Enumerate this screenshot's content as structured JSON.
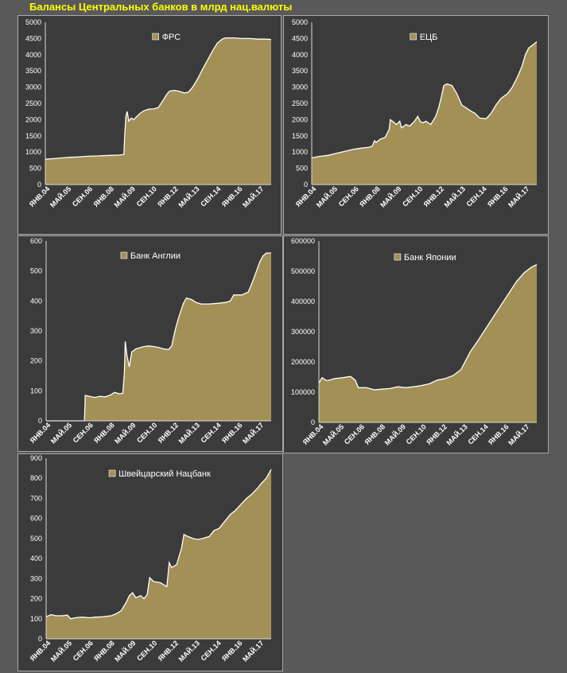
{
  "title": "Балансы Центральных банков в млрд нац.валюты",
  "colors": {
    "fill": "#a39057",
    "line": "#ffffff",
    "background": "#595959",
    "panel": "#3b3b3b"
  },
  "chart_data": [
    {
      "type": "area",
      "legend": "ФРС",
      "legend_position": "top-center",
      "ylim": [
        0,
        5000
      ],
      "yticks": [
        "0",
        "500",
        "1000",
        "1500",
        "2000",
        "2500",
        "3000",
        "3500",
        "4000",
        "4500",
        "5000"
      ],
      "xlabels": [
        "ЯНВ.04",
        "МАЙ.05",
        "СЕН.06",
        "ЯНВ.08",
        "МАЙ.09",
        "СЕН.10",
        "ЯНВ.12",
        "МАЙ.13",
        "СЕН.14",
        "ЯНВ.16",
        "МАЙ.17"
      ],
      "xlim": [
        2004.0,
        2017.8
      ],
      "points": [
        [
          2004.0,
          780
        ],
        [
          2004.5,
          800
        ],
        [
          2005.0,
          820
        ],
        [
          2005.5,
          840
        ],
        [
          2006.0,
          850
        ],
        [
          2006.5,
          870
        ],
        [
          2007.0,
          880
        ],
        [
          2007.5,
          890
        ],
        [
          2008.0,
          900
        ],
        [
          2008.5,
          910
        ],
        [
          2008.8,
          930
        ],
        [
          2008.85,
          1500
        ],
        [
          2008.92,
          2100
        ],
        [
          2009.0,
          2250
        ],
        [
          2009.1,
          1950
        ],
        [
          2009.25,
          2050
        ],
        [
          2009.4,
          2000
        ],
        [
          2009.6,
          2100
        ],
        [
          2009.8,
          2200
        ],
        [
          2010.0,
          2270
        ],
        [
          2010.3,
          2320
        ],
        [
          2010.6,
          2330
        ],
        [
          2010.9,
          2370
        ],
        [
          2011.2,
          2600
        ],
        [
          2011.45,
          2800
        ],
        [
          2011.6,
          2880
        ],
        [
          2011.9,
          2900
        ],
        [
          2012.2,
          2870
        ],
        [
          2012.5,
          2820
        ],
        [
          2012.75,
          2850
        ],
        [
          2013.0,
          3000
        ],
        [
          2013.3,
          3250
        ],
        [
          2013.6,
          3550
        ],
        [
          2013.9,
          3820
        ],
        [
          2014.2,
          4100
        ],
        [
          2014.5,
          4350
        ],
        [
          2014.8,
          4480
        ],
        [
          2015.0,
          4520
        ],
        [
          2015.5,
          4520
        ],
        [
          2016.0,
          4500
        ],
        [
          2016.5,
          4500
        ],
        [
          2017.0,
          4480
        ],
        [
          2017.5,
          4480
        ],
        [
          2017.8,
          4470
        ]
      ]
    },
    {
      "type": "area",
      "legend": "ЕЦБ",
      "legend_position": "top-center",
      "ylim": [
        0,
        5000
      ],
      "yticks": [
        "0",
        "500",
        "1000",
        "1500",
        "2000",
        "2500",
        "3000",
        "3500",
        "4000",
        "4500",
        "5000"
      ],
      "xlabels": [
        "ЯНВ.04",
        "МАЙ.05",
        "СЕН.06",
        "ЯНВ.08",
        "МАЙ.09",
        "СЕН.10",
        "ЯНВ.12",
        "МАЙ.13",
        "СЕН.14",
        "ЯНВ.16",
        "МАЙ.17"
      ],
      "xlim": [
        2004.0,
        2017.8
      ],
      "points": [
        [
          2004.0,
          820
        ],
        [
          2004.5,
          870
        ],
        [
          2005.0,
          900
        ],
        [
          2005.5,
          960
        ],
        [
          2006.0,
          1020
        ],
        [
          2006.5,
          1080
        ],
        [
          2007.0,
          1120
        ],
        [
          2007.5,
          1150
        ],
        [
          2007.7,
          1180
        ],
        [
          2007.85,
          1350
        ],
        [
          2007.95,
          1300
        ],
        [
          2008.2,
          1400
        ],
        [
          2008.5,
          1450
        ],
        [
          2008.75,
          1700
        ],
        [
          2008.82,
          2000
        ],
        [
          2008.95,
          1950
        ],
        [
          2009.2,
          1850
        ],
        [
          2009.4,
          1950
        ],
        [
          2009.5,
          1750
        ],
        [
          2009.8,
          1850
        ],
        [
          2010.0,
          1800
        ],
        [
          2010.3,
          1950
        ],
        [
          2010.5,
          2100
        ],
        [
          2010.65,
          1950
        ],
        [
          2010.8,
          1900
        ],
        [
          2011.0,
          1950
        ],
        [
          2011.3,
          1850
        ],
        [
          2011.6,
          2100
        ],
        [
          2011.8,
          2400
        ],
        [
          2011.95,
          2700
        ],
        [
          2012.1,
          3050
        ],
        [
          2012.3,
          3100
        ],
        [
          2012.6,
          3050
        ],
        [
          2012.9,
          2800
        ],
        [
          2013.2,
          2450
        ],
        [
          2013.5,
          2350
        ],
        [
          2013.8,
          2250
        ],
        [
          2014.0,
          2200
        ],
        [
          2014.3,
          2050
        ],
        [
          2014.7,
          2030
        ],
        [
          2015.0,
          2200
        ],
        [
          2015.3,
          2450
        ],
        [
          2015.6,
          2650
        ],
        [
          2016.0,
          2800
        ],
        [
          2016.3,
          3000
        ],
        [
          2016.6,
          3300
        ],
        [
          2016.9,
          3650
        ],
        [
          2017.1,
          4000
        ],
        [
          2017.3,
          4200
        ],
        [
          2017.5,
          4280
        ],
        [
          2017.8,
          4400
        ]
      ]
    },
    {
      "type": "area",
      "legend": "Банк Англии",
      "legend_position": "top-center",
      "ylim": [
        0,
        600
      ],
      "yticks": [
        "0",
        "100",
        "200",
        "300",
        "400",
        "500",
        "600"
      ],
      "xlabels": [
        "ЯНВ.04",
        "МАЙ.05",
        "СЕН.06",
        "ЯНВ.08",
        "МАЙ.09",
        "СЕН.10",
        "ЯНВ.12",
        "МАЙ.13",
        "СЕН.14",
        "ЯНВ.16",
        "МАЙ.17"
      ],
      "xlim": [
        2004.0,
        2017.8
      ],
      "points": [
        [
          2004.0,
          0
        ],
        [
          2006.35,
          0
        ],
        [
          2006.4,
          85
        ],
        [
          2006.8,
          80
        ],
        [
          2007.0,
          78
        ],
        [
          2007.3,
          82
        ],
        [
          2007.6,
          80
        ],
        [
          2007.9,
          85
        ],
        [
          2008.2,
          95
        ],
        [
          2008.5,
          90
        ],
        [
          2008.7,
          92
        ],
        [
          2008.8,
          160
        ],
        [
          2008.85,
          265
        ],
        [
          2008.95,
          220
        ],
        [
          2009.1,
          180
        ],
        [
          2009.25,
          230
        ],
        [
          2009.5,
          240
        ],
        [
          2009.8,
          245
        ],
        [
          2010.0,
          248
        ],
        [
          2010.3,
          250
        ],
        [
          2010.6,
          248
        ],
        [
          2010.9,
          245
        ],
        [
          2011.2,
          240
        ],
        [
          2011.5,
          238
        ],
        [
          2011.7,
          250
        ],
        [
          2011.9,
          300
        ],
        [
          2012.1,
          340
        ],
        [
          2012.4,
          390
        ],
        [
          2012.6,
          410
        ],
        [
          2012.9,
          405
        ],
        [
          2013.2,
          395
        ],
        [
          2013.5,
          390
        ],
        [
          2014.0,
          390
        ],
        [
          2014.5,
          392
        ],
        [
          2015.0,
          395
        ],
        [
          2015.3,
          400
        ],
        [
          2015.5,
          420
        ],
        [
          2016.0,
          420
        ],
        [
          2016.4,
          430
        ],
        [
          2016.7,
          470
        ],
        [
          2016.9,
          500
        ],
        [
          2017.1,
          530
        ],
        [
          2017.3,
          550
        ],
        [
          2017.5,
          560
        ],
        [
          2017.8,
          560
        ]
      ]
    },
    {
      "type": "area",
      "legend": "Банк Японии",
      "legend_position": "top-center",
      "ylim": [
        0,
        600000
      ],
      "yticks": [
        "0",
        "100000",
        "200000",
        "300000",
        "400000",
        "500000",
        "600000"
      ],
      "xlabels": [
        "ЯНВ.04",
        "МАЙ.05",
        "СЕН.06",
        "ЯНВ.08",
        "МАЙ.09",
        "СЕН.10",
        "ЯНВ.12",
        "МАЙ.13",
        "СЕН.14",
        "ЯНВ.16",
        "МАЙ.17"
      ],
      "xlim": [
        2004.0,
        2017.8
      ],
      "points": [
        [
          2004.0,
          130000
        ],
        [
          2004.2,
          148000
        ],
        [
          2004.5,
          138000
        ],
        [
          2005.0,
          145000
        ],
        [
          2005.5,
          148000
        ],
        [
          2006.0,
          152000
        ],
        [
          2006.3,
          140000
        ],
        [
          2006.5,
          115000
        ],
        [
          2007.0,
          115000
        ],
        [
          2007.5,
          108000
        ],
        [
          2008.0,
          110000
        ],
        [
          2008.5,
          112000
        ],
        [
          2009.0,
          118000
        ],
        [
          2009.5,
          115000
        ],
        [
          2010.0,
          118000
        ],
        [
          2010.5,
          122000
        ],
        [
          2011.0,
          128000
        ],
        [
          2011.5,
          140000
        ],
        [
          2012.0,
          145000
        ],
        [
          2012.5,
          155000
        ],
        [
          2013.0,
          175000
        ],
        [
          2013.3,
          205000
        ],
        [
          2013.6,
          235000
        ],
        [
          2014.0,
          265000
        ],
        [
          2014.5,
          305000
        ],
        [
          2015.0,
          345000
        ],
        [
          2015.5,
          385000
        ],
        [
          2016.0,
          425000
        ],
        [
          2016.5,
          465000
        ],
        [
          2017.0,
          495000
        ],
        [
          2017.5,
          515000
        ],
        [
          2017.8,
          522000
        ]
      ]
    },
    {
      "type": "area",
      "legend": "Швейцарский Нацбанк",
      "legend_position": "top-center",
      "ylim": [
        0,
        900
      ],
      "yticks": [
        "0",
        "100",
        "200",
        "300",
        "400",
        "500",
        "600",
        "700",
        "800",
        "900"
      ],
      "xlabels": [
        "ЯНВ.04",
        "МАЙ.05",
        "СЕН.06",
        "ЯНВ.08",
        "МАЙ.09",
        "СЕН.10",
        "ЯНВ.12",
        "МАЙ.13",
        "СЕН.14",
        "ЯНВ.16",
        "МАЙ.17"
      ],
      "xlim": [
        2004.0,
        2017.8
      ],
      "points": [
        [
          2004.0,
          110
        ],
        [
          2004.3,
          120
        ],
        [
          2004.6,
          115
        ],
        [
          2005.0,
          115
        ],
        [
          2005.3,
          118
        ],
        [
          2005.5,
          100
        ],
        [
          2005.8,
          105
        ],
        [
          2006.2,
          108
        ],
        [
          2006.7,
          105
        ],
        [
          2007.0,
          108
        ],
        [
          2007.5,
          110
        ],
        [
          2008.0,
          115
        ],
        [
          2008.3,
          125
        ],
        [
          2008.6,
          140
        ],
        [
          2008.9,
          180
        ],
        [
          2009.1,
          215
        ],
        [
          2009.3,
          230
        ],
        [
          2009.5,
          205
        ],
        [
          2009.8,
          215
        ],
        [
          2010.0,
          200
        ],
        [
          2010.2,
          220
        ],
        [
          2010.35,
          305
        ],
        [
          2010.6,
          285
        ],
        [
          2011.0,
          280
        ],
        [
          2011.4,
          260
        ],
        [
          2011.55,
          380
        ],
        [
          2011.7,
          355
        ],
        [
          2012.0,
          370
        ],
        [
          2012.3,
          450
        ],
        [
          2012.45,
          520
        ],
        [
          2012.7,
          510
        ],
        [
          2013.0,
          500
        ],
        [
          2013.3,
          495
        ],
        [
          2013.6,
          500
        ],
        [
          2014.0,
          510
        ],
        [
          2014.3,
          540
        ],
        [
          2014.6,
          550
        ],
        [
          2015.0,
          590
        ],
        [
          2015.3,
          620
        ],
        [
          2015.6,
          640
        ],
        [
          2016.0,
          675
        ],
        [
          2016.3,
          700
        ],
        [
          2016.6,
          720
        ],
        [
          2016.9,
          745
        ],
        [
          2017.2,
          775
        ],
        [
          2017.5,
          800
        ],
        [
          2017.8,
          845
        ]
      ]
    }
  ]
}
